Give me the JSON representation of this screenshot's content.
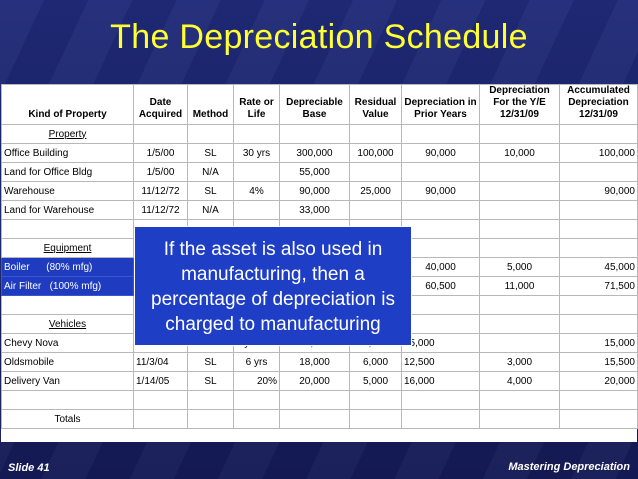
{
  "slide": {
    "title": "The Depreciation Schedule",
    "footer_left": "Slide 41",
    "footer_right": "Mastering Depreciation",
    "callout": "If the asset is also used in manufacturing, then a percentage of depreciation is charged to manufacturing"
  },
  "columns": [
    "Kind of Property",
    "Date Acquired",
    "Method",
    "Rate or Life",
    "Depreciable Base",
    "Residual Value",
    "Depreciation in Prior Years",
    "Depreciation For the Y/E 12/31/09",
    "Accumulated Depreciation 12/31/09"
  ],
  "sections": {
    "property": "Property",
    "equipment": "Equipment",
    "vehicles": "Vehicles",
    "totals": "Totals"
  },
  "rows": {
    "office_building": [
      "Office Building",
      "1/5/00",
      "SL",
      "30 yrs",
      "300,000",
      "100,000",
      "90,000",
      "10,000",
      "100,000"
    ],
    "land_office": [
      "Land for Office Bldg",
      "1/5/00",
      "N/A",
      "",
      "55,000",
      "",
      "",
      "",
      ""
    ],
    "warehouse": [
      "Warehouse",
      "11/12/72",
      "SL",
      "4%",
      "90,000",
      "25,000",
      "90,000",
      "",
      "90,000"
    ],
    "land_warehouse": [
      "Land for Warehouse",
      "11/12/72",
      "N/A",
      "",
      "33,000",
      "",
      "",
      "",
      ""
    ],
    "boiler": [
      "Boiler",
      "(80% mfg)",
      "",
      "",
      "",
      "",
      "40,000",
      "5,000",
      "45,000"
    ],
    "air_filter": [
      "Air Filter",
      "(100% mfg)",
      "",
      "",
      "",
      "",
      "60,500",
      "11,000",
      "71,500"
    ],
    "chevy": [
      "Chevy Nova",
      "1/1/00",
      "SL",
      "5 yrs",
      "15,000",
      "3,000",
      "15,000",
      "",
      "15,000"
    ],
    "olds": [
      "Oldsmobile",
      "11/3/04",
      "SL",
      "6 yrs",
      "18,000",
      "6,000",
      "12,500",
      "3,000",
      "15,500"
    ],
    "van": [
      "Delivery Van",
      "1/14/05",
      "SL",
      "20%",
      "20,000",
      "5,000",
      "16,000",
      "4,000",
      "20,000"
    ]
  }
}
